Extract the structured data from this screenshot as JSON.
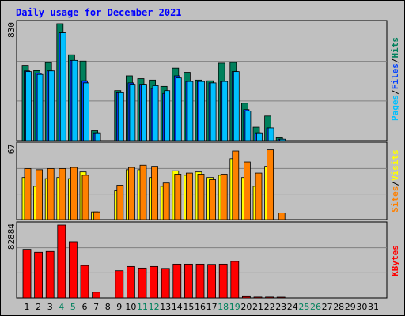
{
  "title": "Daily usage for December 2021",
  "colors": {
    "title": "#0000ff",
    "panel_bg": "#c0c0c0",
    "grid": "#808080",
    "hits": "#00805c",
    "files": "#0040ff",
    "pages": "#00c0ff",
    "visits": "#ffff00",
    "sites": "#ff8000",
    "kbytes": "#ff0000",
    "weekday": "#000000",
    "weekend": "#00805c"
  },
  "side_labels": {
    "top": [
      {
        "text": "Hits",
        "color": "#00805c"
      },
      {
        "text": "/",
        "color": "#000000"
      },
      {
        "text": "Files",
        "color": "#0040ff"
      },
      {
        "text": "/",
        "color": "#000000"
      },
      {
        "text": "Pages",
        "color": "#00c0ff"
      }
    ],
    "middle": [
      {
        "text": "Visits",
        "color": "#ffff00"
      },
      {
        "text": "/",
        "color": "#000000"
      },
      {
        "text": "Sites",
        "color": "#ff8000"
      }
    ],
    "bottom": [
      {
        "text": "KBytes",
        "color": "#ff0000"
      }
    ]
  },
  "chart_data": [
    {
      "type": "bar",
      "panel": "hits-files-pages",
      "ymax_label": "830",
      "ylim": [
        0,
        830
      ],
      "x": [
        1,
        2,
        3,
        4,
        5,
        6,
        7,
        8,
        9,
        10,
        11,
        12,
        13,
        14,
        15,
        16,
        17,
        18,
        19,
        20,
        21,
        22,
        23,
        24,
        25,
        26,
        27,
        28,
        29,
        30,
        31
      ],
      "series": [
        {
          "name": "Hits",
          "values": [
            535,
            497,
            554,
            830,
            610,
            565,
            70,
            0,
            355,
            460,
            440,
            430,
            385,
            515,
            485,
            430,
            425,
            550,
            555,
            265,
            95,
            175,
            20,
            0,
            0,
            0,
            0,
            0,
            0,
            0,
            0
          ]
        },
        {
          "name": "Files",
          "values": [
            495,
            480,
            495,
            765,
            570,
            425,
            55,
            0,
            340,
            410,
            400,
            370,
            335,
            460,
            420,
            420,
            410,
            420,
            490,
            220,
            55,
            90,
            10,
            0,
            0,
            0,
            0,
            0,
            0,
            0,
            0
          ]
        },
        {
          "name": "Pages",
          "values": [
            490,
            470,
            495,
            765,
            570,
            410,
            55,
            0,
            340,
            400,
            400,
            390,
            355,
            445,
            420,
            420,
            410,
            420,
            490,
            210,
            55,
            90,
            10,
            0,
            0,
            0,
            0,
            0,
            0,
            0,
            0
          ]
        }
      ]
    },
    {
      "type": "bar",
      "panel": "visits-sites",
      "ymax_label": "67",
      "ylim": [
        0,
        67
      ],
      "x": [
        1,
        2,
        3,
        4,
        5,
        6,
        7,
        8,
        9,
        10,
        11,
        12,
        13,
        14,
        15,
        16,
        17,
        18,
        19,
        20,
        21,
        22,
        23,
        24,
        25,
        26,
        27,
        28,
        29,
        30,
        31
      ],
      "series": [
        {
          "name": "Visits",
          "values": [
            38,
            30,
            37,
            38,
            37,
            43,
            7,
            0,
            26,
            45,
            45,
            38,
            30,
            44,
            40,
            43,
            38,
            40,
            55,
            38,
            30,
            48,
            0,
            0,
            0,
            0,
            0,
            0,
            0,
            0,
            0
          ]
        },
        {
          "name": "Sites",
          "values": [
            46,
            45,
            46,
            46,
            47,
            40,
            7,
            0,
            31,
            47,
            49,
            48,
            33,
            41,
            42,
            41,
            36,
            41,
            62,
            52,
            42,
            63,
            6,
            0,
            0,
            0,
            0,
            0,
            0,
            0,
            0
          ]
        }
      ]
    },
    {
      "type": "bar",
      "panel": "kbytes",
      "ymax_label": "82884",
      "ylim": [
        0,
        82884
      ],
      "x": [
        1,
        2,
        3,
        4,
        5,
        6,
        7,
        8,
        9,
        10,
        11,
        12,
        13,
        14,
        15,
        16,
        17,
        18,
        19,
        20,
        21,
        22,
        23,
        24,
        25,
        26,
        27,
        28,
        29,
        30,
        31
      ],
      "series": [
        {
          "name": "KBytes",
          "values": [
            55300,
            52000,
            52900,
            82884,
            64000,
            36800,
            6500,
            0,
            30900,
            35700,
            33900,
            35700,
            33500,
            38400,
            38400,
            38400,
            38100,
            38400,
            41500,
            1500,
            1000,
            1000,
            500,
            0,
            0,
            0,
            0,
            0,
            0,
            0,
            0
          ]
        }
      ]
    }
  ],
  "weekend_days": [
    4,
    5,
    11,
    12,
    18,
    19,
    25,
    26
  ]
}
